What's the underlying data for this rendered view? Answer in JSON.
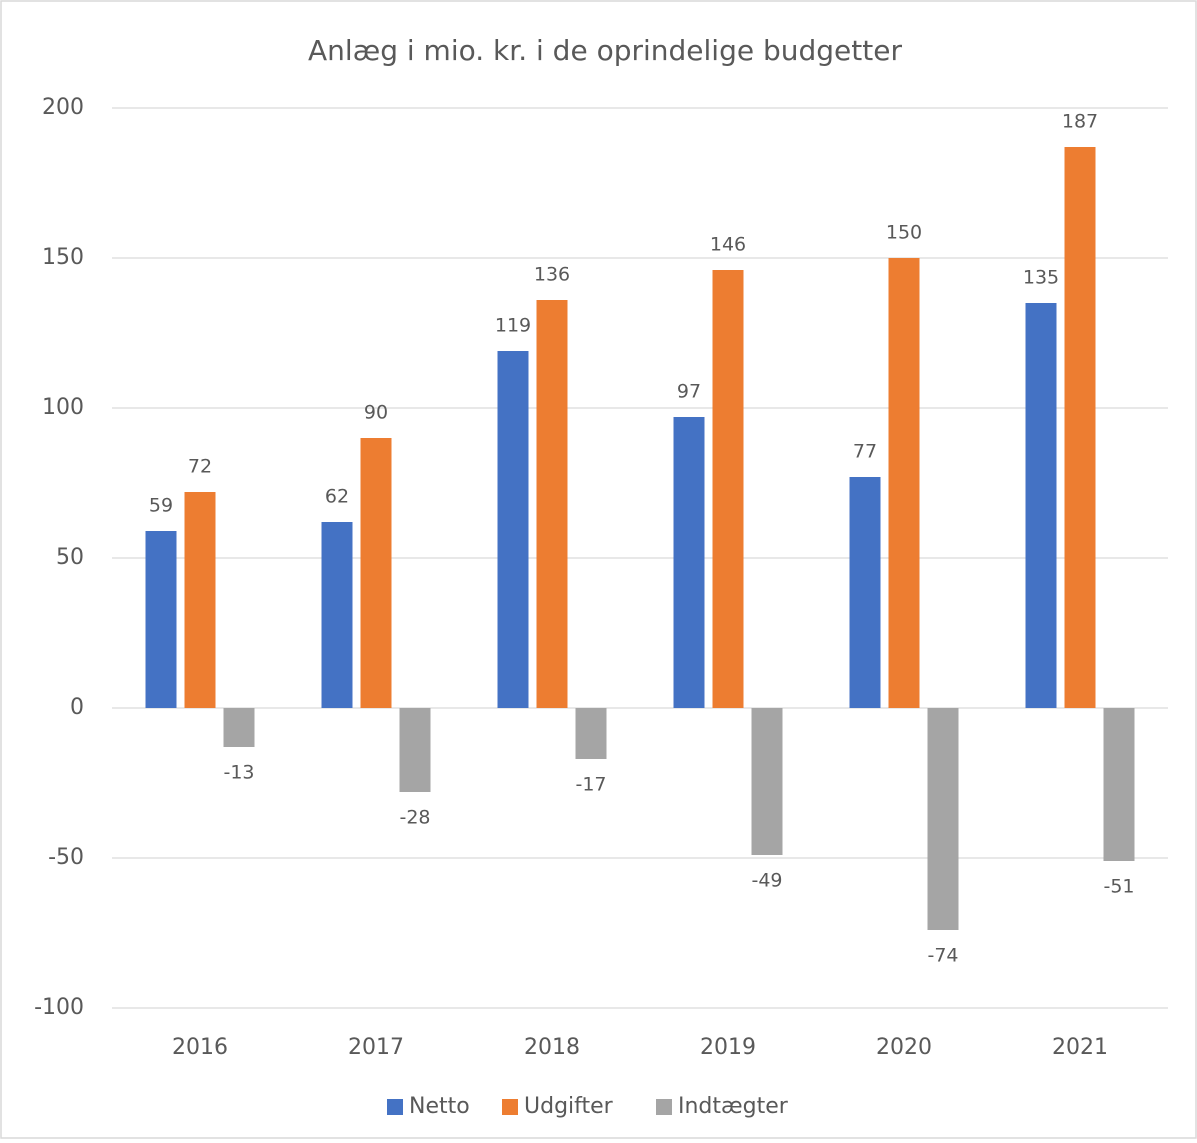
{
  "chart_data": {
    "type": "bar",
    "title": "Anlæg i mio. kr. i de oprindelige budgetter",
    "categories": [
      "2016",
      "2017",
      "2018",
      "2019",
      "2020",
      "2021"
    ],
    "series": [
      {
        "name": "Netto",
        "color": "#4472c4",
        "values": [
          59,
          62,
          119,
          97,
          77,
          135
        ]
      },
      {
        "name": "Udgifter",
        "color": "#ed7d31",
        "values": [
          72,
          90,
          136,
          146,
          150,
          187
        ]
      },
      {
        "name": "Indtægter",
        "color": "#a5a5a5",
        "values": [
          -13,
          -28,
          -17,
          -49,
          -74,
          -51
        ]
      }
    ],
    "ylim": [
      -100,
      200
    ],
    "yticks": [
      -100,
      -50,
      0,
      50,
      100,
      150,
      200
    ],
    "grid": true,
    "legend": "bottom"
  }
}
